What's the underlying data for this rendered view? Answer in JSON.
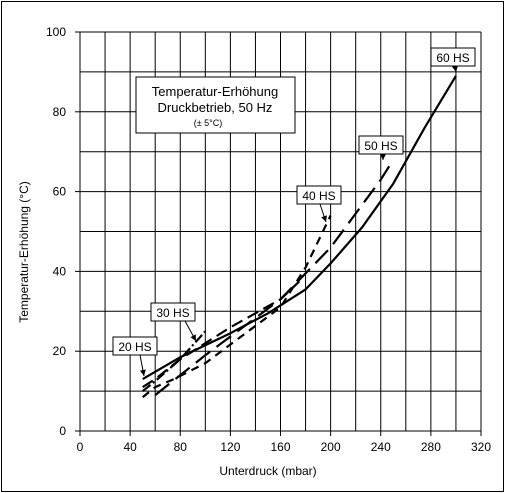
{
  "chart_data": {
    "type": "line",
    "title": "Temperatur-Erhöhung",
    "subtitle": "Druckbetrieb, 50 Hz",
    "note": "(± 5°C)",
    "xlabel": "Unterdruck (mbar)",
    "ylabel": "Temperatur-Erhöhung (°C)",
    "xlim": [
      0,
      320
    ],
    "ylim": [
      0,
      100
    ],
    "xticks": [
      0,
      40,
      80,
      120,
      160,
      200,
      240,
      280,
      320
    ],
    "yticks": [
      0,
      20,
      40,
      60,
      80,
      100
    ],
    "grid": true,
    "series": [
      {
        "name": "20 HS",
        "dash": "8,6",
        "x": [
          50,
          60,
          75,
          100,
          130,
          160,
          180,
          200
        ],
        "y": [
          8.5,
          11,
          13,
          17,
          24,
          31,
          41,
          54
        ]
      },
      {
        "name": "30 HS",
        "dash": "10,3,2,3",
        "x": [
          50,
          60,
          80,
          100
        ],
        "y": [
          10,
          12.5,
          18,
          25
        ]
      },
      {
        "name": "40 HS",
        "dash": "12,6",
        "x": [
          50,
          60,
          80,
          100,
          120,
          140,
          160,
          175
        ],
        "y": [
          11,
          13,
          18,
          22,
          26,
          29.5,
          33,
          37.5
        ]
      },
      {
        "name": "50 HS",
        "dash": "18,8",
        "x": [
          60,
          80,
          100,
          130,
          160,
          200,
          240,
          248
        ],
        "y": [
          9,
          14,
          19,
          26,
          33,
          46,
          63,
          67
        ]
      },
      {
        "name": "60 HS",
        "dash": "",
        "x": [
          50,
          80,
          100,
          120,
          150,
          180,
          200,
          225,
          250,
          275,
          300
        ],
        "y": [
          13,
          18.5,
          21.5,
          24.5,
          29.5,
          35.5,
          42,
          51,
          62,
          76,
          89
        ]
      }
    ],
    "annotations": [
      {
        "text": "20 HS",
        "series": "20 HS"
      },
      {
        "text": "30 HS",
        "series": "30 HS"
      },
      {
        "text": "40 HS",
        "series": "40 HS"
      },
      {
        "text": "50 HS",
        "series": "50 HS"
      },
      {
        "text": "60 HS",
        "series": "60 HS"
      }
    ]
  }
}
